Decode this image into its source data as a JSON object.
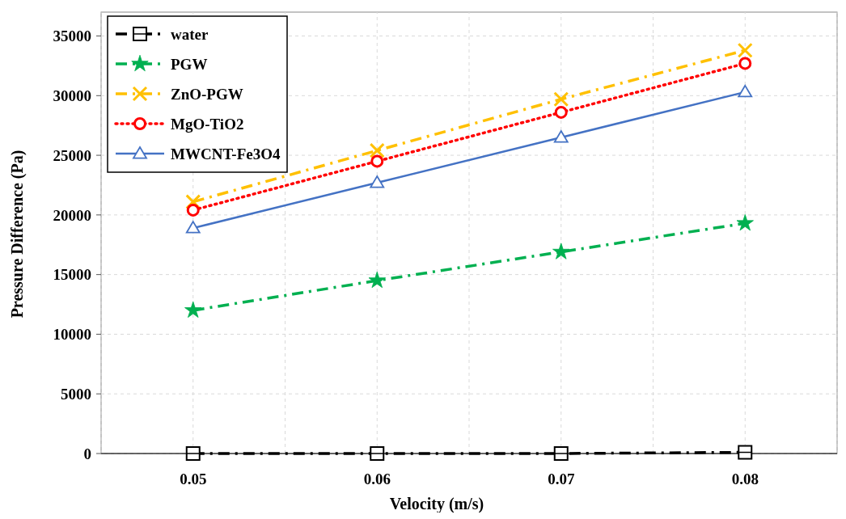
{
  "chart_data": {
    "type": "line",
    "xlabel": "Velocity (m/s)",
    "ylabel": "Pressure Difference (Pa)",
    "x": [
      0.05,
      0.06,
      0.07,
      0.08
    ],
    "xlim": [
      0.045,
      0.085
    ],
    "xticks": [
      {
        "value": 0.045,
        "label": null
      },
      0.05,
      {
        "value": 0.055,
        "label": null
      },
      0.06,
      {
        "value": 0.065,
        "label": null
      },
      0.07,
      {
        "value": 0.075,
        "label": null
      },
      0.08,
      {
        "value": 0.085,
        "label": null
      }
    ],
    "ylim": [
      0,
      37000
    ],
    "yticks": [
      0,
      5000,
      10000,
      15000,
      20000,
      25000,
      30000,
      35000
    ],
    "grid": true,
    "legend": "top left",
    "series": [
      {
        "name": "water",
        "color": "#000000",
        "values": [
          0,
          0,
          0,
          100
        ],
        "marker": "square",
        "line_style": "dashed"
      },
      {
        "name": "PGW",
        "color": "#00b050",
        "values": [
          12000,
          14500,
          16900,
          19300
        ],
        "marker": "star",
        "line_style": "dashed"
      },
      {
        "name": "ZnO-PGW",
        "color": "#ffc000",
        "values": [
          21100,
          25400,
          29700,
          33800
        ],
        "marker": "cross",
        "line_style": "dashed"
      },
      {
        "name": "MgO-TiO2",
        "color": "#ff0000",
        "values": [
          20400,
          24500,
          28600,
          32700
        ],
        "marker": "circle",
        "line_style": "dotted"
      },
      {
        "name": "MWCNT-Fe3O4",
        "color": "#4472c4",
        "values": [
          18900,
          22700,
          26500,
          30300
        ],
        "marker": "triangle",
        "line_style": "solid"
      }
    ]
  }
}
